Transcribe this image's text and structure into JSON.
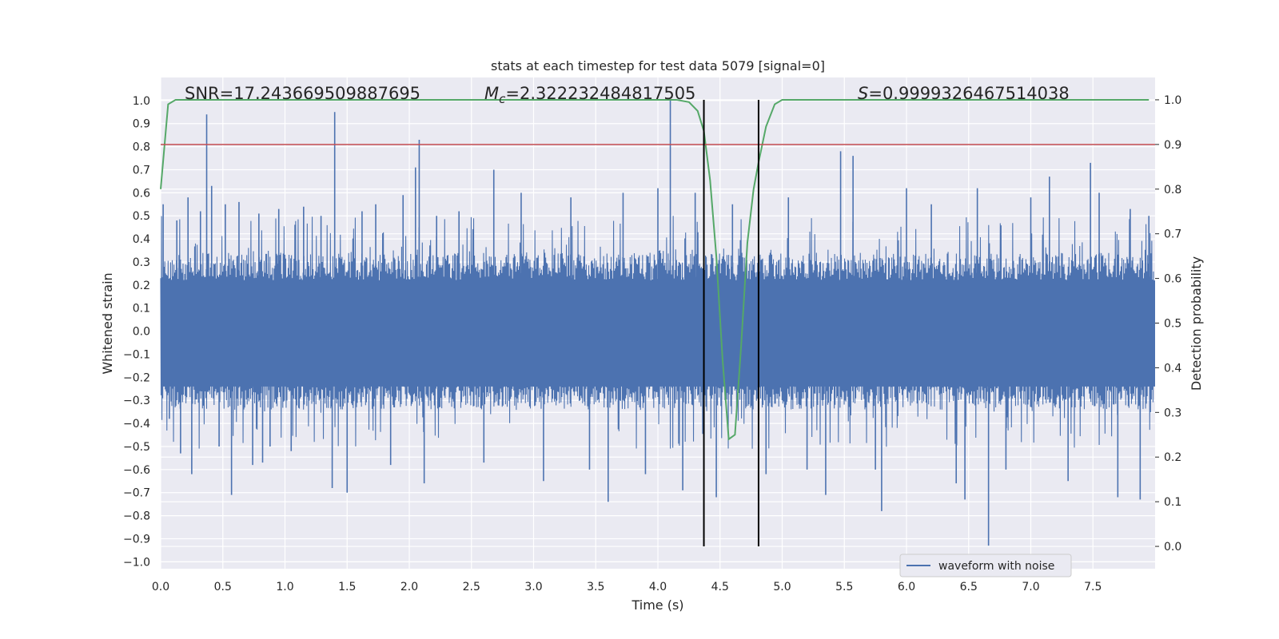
{
  "chart_data": {
    "type": "line",
    "title": "stats at each timestep for test data 5079 [signal=0]",
    "xlabel": "Time (s)",
    "ylabel": "Whitened strain",
    "ylabel_right": "Detection probability",
    "xlim": [
      0.0,
      8.0
    ],
    "ylim": [
      -1.03,
      1.1
    ],
    "ylim_right": [
      -0.05,
      1.05
    ],
    "x_ticks": [
      "0.0",
      "0.5",
      "1.0",
      "1.5",
      "2.0",
      "2.5",
      "3.0",
      "3.5",
      "4.0",
      "4.5",
      "5.0",
      "5.5",
      "6.0",
      "6.5",
      "7.0",
      "7.5"
    ],
    "y_ticks": [
      "1.0",
      "0.9",
      "0.8",
      "0.7",
      "0.6",
      "0.5",
      "0.4",
      "0.3",
      "0.2",
      "0.1",
      "0.0",
      "−0.1",
      "−0.2",
      "−0.3",
      "−0.4",
      "−0.5",
      "−0.6",
      "−0.7",
      "−0.8",
      "−0.9",
      "−1.0"
    ],
    "y_ticks_right": [
      "1.0",
      "0.9",
      "0.8",
      "0.7",
      "0.6",
      "0.5",
      "0.4",
      "0.3",
      "0.2",
      "0.1",
      "0.0"
    ],
    "grid": true,
    "legend": {
      "placement": "lower-right",
      "entries": [
        "waveform with noise"
      ]
    },
    "annotations": {
      "snr": "SNR=17.243669509887695",
      "mc_symbol": "M",
      "mc_sub": "c",
      "mc_value": "=2.322232484817505",
      "s_symbol": "S",
      "s_value": "=0.9999326467514038"
    },
    "threshold_right": 0.9,
    "vlines_x": [
      4.37,
      4.81
    ],
    "vlines_yrange_right": [
      0.0,
      1.0
    ],
    "series": [
      {
        "name": "waveform with noise",
        "color": "#4c72b0",
        "description_level": "strain noise, typical envelope ±0.4",
        "peaks": [
          {
            "x": 0.02,
            "y": 0.55
          },
          {
            "x": 0.07,
            "y": -0.38
          },
          {
            "x": 0.13,
            "y": 0.48
          },
          {
            "x": 0.16,
            "y": -0.53
          },
          {
            "x": 0.22,
            "y": 0.58
          },
          {
            "x": 0.25,
            "y": -0.62
          },
          {
            "x": 0.32,
            "y": 0.52
          },
          {
            "x": 0.37,
            "y": 0.94
          },
          {
            "x": 0.41,
            "y": 0.63
          },
          {
            "x": 0.47,
            "y": -0.5
          },
          {
            "x": 0.52,
            "y": 0.55
          },
          {
            "x": 0.57,
            "y": -0.71
          },
          {
            "x": 0.63,
            "y": 0.56
          },
          {
            "x": 0.74,
            "y": -0.58
          },
          {
            "x": 0.79,
            "y": 0.51
          },
          {
            "x": 0.82,
            "y": -0.57
          },
          {
            "x": 0.88,
            "y": -0.5
          },
          {
            "x": 0.95,
            "y": 0.53
          },
          {
            "x": 1.05,
            "y": -0.52
          },
          {
            "x": 1.15,
            "y": 0.54
          },
          {
            "x": 1.29,
            "y": 0.5
          },
          {
            "x": 1.38,
            "y": -0.68
          },
          {
            "x": 1.4,
            "y": 0.95
          },
          {
            "x": 1.5,
            "y": -0.7
          },
          {
            "x": 1.62,
            "y": 0.52
          },
          {
            "x": 1.73,
            "y": 0.55
          },
          {
            "x": 1.85,
            "y": -0.58
          },
          {
            "x": 1.95,
            "y": 0.59
          },
          {
            "x": 2.05,
            "y": 0.71
          },
          {
            "x": 2.08,
            "y": 0.83
          },
          {
            "x": 2.12,
            "y": -0.66
          },
          {
            "x": 2.22,
            "y": 0.5
          },
          {
            "x": 2.4,
            "y": 0.52
          },
          {
            "x": 2.6,
            "y": -0.57
          },
          {
            "x": 2.68,
            "y": 0.7
          },
          {
            "x": 2.9,
            "y": 0.6
          },
          {
            "x": 3.08,
            "y": -0.65
          },
          {
            "x": 3.3,
            "y": 0.58
          },
          {
            "x": 3.45,
            "y": -0.6
          },
          {
            "x": 3.6,
            "y": -0.74
          },
          {
            "x": 3.72,
            "y": 0.6
          },
          {
            "x": 3.9,
            "y": -0.62
          },
          {
            "x": 4.0,
            "y": 0.62
          },
          {
            "x": 4.1,
            "y": 1.0
          },
          {
            "x": 4.2,
            "y": -0.69
          },
          {
            "x": 4.3,
            "y": 0.6
          },
          {
            "x": 4.47,
            "y": -0.72
          },
          {
            "x": 4.6,
            "y": 0.55
          },
          {
            "x": 4.87,
            "y": -0.62
          },
          {
            "x": 5.05,
            "y": 0.58
          },
          {
            "x": 5.2,
            "y": -0.6
          },
          {
            "x": 5.35,
            "y": -0.71
          },
          {
            "x": 5.47,
            "y": 0.78
          },
          {
            "x": 5.57,
            "y": 0.76
          },
          {
            "x": 5.75,
            "y": -0.6
          },
          {
            "x": 5.8,
            "y": -0.78
          },
          {
            "x": 6.0,
            "y": 0.62
          },
          {
            "x": 6.2,
            "y": 0.55
          },
          {
            "x": 6.4,
            "y": -0.66
          },
          {
            "x": 6.47,
            "y": -0.73
          },
          {
            "x": 6.57,
            "y": 0.62
          },
          {
            "x": 6.66,
            "y": -0.93
          },
          {
            "x": 6.8,
            "y": -0.6
          },
          {
            "x": 7.0,
            "y": 0.58
          },
          {
            "x": 7.15,
            "y": 0.67
          },
          {
            "x": 7.3,
            "y": -0.65
          },
          {
            "x": 7.48,
            "y": 0.73
          },
          {
            "x": 7.55,
            "y": 0.6
          },
          {
            "x": 7.7,
            "y": -0.72
          },
          {
            "x": 7.8,
            "y": 0.53
          },
          {
            "x": 7.88,
            "y": -0.73
          },
          {
            "x": 7.95,
            "y": 0.5
          }
        ]
      },
      {
        "name": "",
        "color": "#55a868",
        "axis": "right",
        "x": [
          0.0,
          0.06,
          0.12,
          0.2,
          0.5,
          1.0,
          1.5,
          2.0,
          2.5,
          3.0,
          3.5,
          4.0,
          4.15,
          4.25,
          4.32,
          4.37,
          4.42,
          4.47,
          4.52,
          4.57,
          4.62,
          4.67,
          4.72,
          4.77,
          4.81,
          4.87,
          4.94,
          5.0,
          5.1,
          5.5,
          6.0,
          6.5,
          7.0,
          7.5,
          7.95
        ],
        "y": [
          0.8,
          0.99,
          1.0,
          1.0,
          1.0,
          1.0,
          1.0,
          1.0,
          1.0,
          1.0,
          1.0,
          1.0,
          1.0,
          0.995,
          0.975,
          0.93,
          0.82,
          0.65,
          0.42,
          0.24,
          0.25,
          0.45,
          0.68,
          0.8,
          0.86,
          0.94,
          0.99,
          1.0,
          1.0,
          1.0,
          1.0,
          1.0,
          1.0,
          1.0,
          1.0
        ]
      },
      {
        "name": "",
        "color": "#c44e52",
        "axis": "right",
        "x": [
          0.0,
          8.0
        ],
        "y": [
          0.9,
          0.9
        ]
      }
    ]
  }
}
